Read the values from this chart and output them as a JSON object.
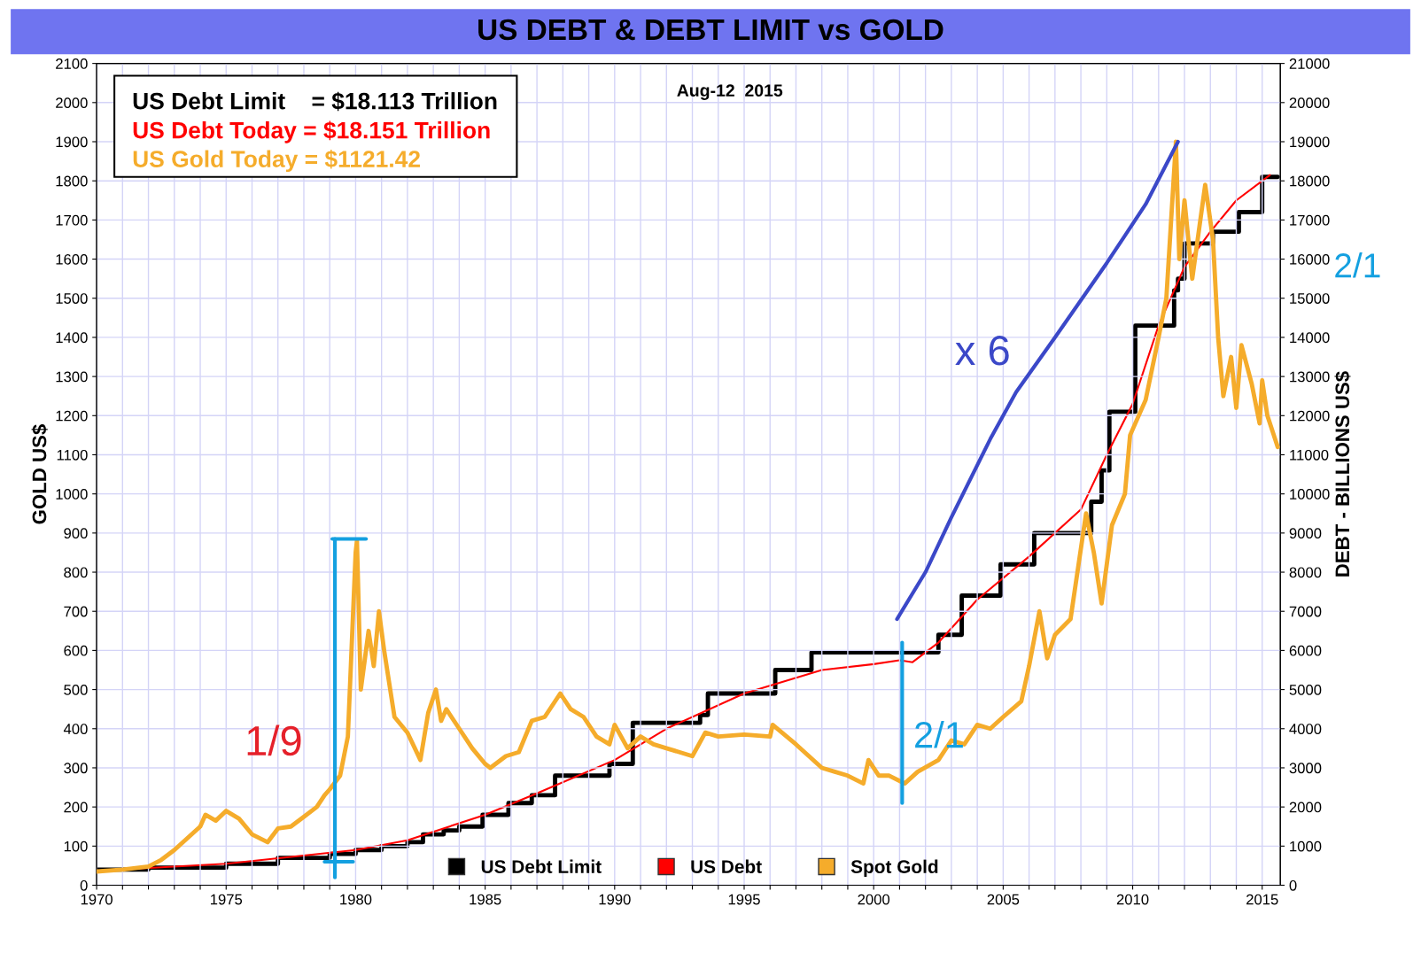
{
  "chart_data": {
    "type": "line",
    "title": "US DEBT & DEBT LIMIT vs GOLD",
    "ylabel": "GOLD US$",
    "y2label": "DEBT - BILLIONS US$",
    "annotations": [
      "US Debt Limit    = $18.113 Trillion",
      "US Debt Today = $18.151 Trillion",
      "US Gold Today = $1121.42",
      "Aug-12  2015",
      "1/9",
      "x 6",
      "2/1",
      "2/1"
    ],
    "xlim": [
      1970,
      2015.7
    ],
    "xticks": [
      1970,
      {
        "value": 1971,
        "label": null
      },
      {
        "value": 1972,
        "label": null
      },
      {
        "value": 1973,
        "label": null
      },
      {
        "value": 1974,
        "label": null
      },
      1975,
      {
        "value": 1976,
        "label": null
      },
      {
        "value": 1977,
        "label": null
      },
      {
        "value": 1978,
        "label": null
      },
      {
        "value": 1979,
        "label": null
      },
      1980,
      {
        "value": 1981,
        "label": null
      },
      {
        "value": 1982,
        "label": null
      },
      {
        "value": 1983,
        "label": null
      },
      {
        "value": 1984,
        "label": null
      },
      1985,
      {
        "value": 1986,
        "label": null
      },
      {
        "value": 1987,
        "label": null
      },
      {
        "value": 1988,
        "label": null
      },
      {
        "value": 1989,
        "label": null
      },
      1990,
      {
        "value": 1991,
        "label": null
      },
      {
        "value": 1992,
        "label": null
      },
      {
        "value": 1993,
        "label": null
      },
      {
        "value": 1994,
        "label": null
      },
      1995,
      {
        "value": 1996,
        "label": null
      },
      {
        "value": 1997,
        "label": null
      },
      {
        "value": 1998,
        "label": null
      },
      {
        "value": 1999,
        "label": null
      },
      2000,
      {
        "value": 2001,
        "label": null
      },
      {
        "value": 2002,
        "label": null
      },
      {
        "value": 2003,
        "label": null
      },
      {
        "value": 2004,
        "label": null
      },
      2005,
      {
        "value": 2006,
        "label": null
      },
      {
        "value": 2007,
        "label": null
      },
      {
        "value": 2008,
        "label": null
      },
      {
        "value": 2009,
        "label": null
      },
      2010,
      {
        "value": 2011,
        "label": null
      },
      {
        "value": 2012,
        "label": null
      },
      {
        "value": 2013,
        "label": null
      },
      {
        "value": 2014,
        "label": null
      },
      2015
    ],
    "ylim": [
      0,
      2100
    ],
    "yticks": [
      0,
      100,
      200,
      300,
      400,
      500,
      600,
      700,
      800,
      900,
      1000,
      1100,
      1200,
      1300,
      1400,
      1500,
      1600,
      1700,
      1800,
      1900,
      2000,
      2100
    ],
    "y2lim": [
      0,
      21000
    ],
    "y2ticks": [
      0,
      1000,
      2000,
      3000,
      4000,
      5000,
      6000,
      7000,
      8000,
      9000,
      10000,
      11000,
      12000,
      13000,
      14000,
      15000,
      16000,
      17000,
      18000,
      19000,
      20000,
      21000
    ],
    "grid": true,
    "legend": "bottom",
    "marker": "none",
    "line_style": "solid",
    "series": [
      {
        "name": "US Debt Limit",
        "type": "step",
        "axis": "y2",
        "color": "#000000",
        "x": [
          1970,
          1972,
          1975,
          1977,
          1979,
          1980,
          1981,
          1982,
          1982.6,
          1983.4,
          1984,
          1984.9,
          1985.9,
          1986.8,
          1987.7,
          1989.8,
          1990.7,
          1993.3,
          1993.6,
          1996.2,
          1997.6,
          2002.5,
          2003.4,
          2004.9,
          2006.2,
          2008.4,
          2008.8,
          2009.1,
          2010.1,
          2011.6,
          2011.75,
          2012.0,
          2013.1,
          2014.1,
          2015.0,
          2015.6
        ],
        "values": [
          400,
          450,
          550,
          700,
          800,
          900,
          1000,
          1100,
          1300,
          1400,
          1500,
          1800,
          2100,
          2300,
          2800,
          3100,
          4150,
          4350,
          4900,
          5500,
          5950,
          6400,
          7400,
          8200,
          9000,
          9800,
          10600,
          12100,
          14300,
          15200,
          15500,
          16400,
          16700,
          17200,
          18100,
          18100
        ]
      },
      {
        "name": "US Debt",
        "axis": "y2",
        "color": "#ff0000",
        "x": [
          1970,
          1975,
          1980,
          1982,
          1985,
          1987,
          1990,
          1992,
          1995,
          1998,
          2000,
          2001,
          2001.5,
          2002.5,
          2004,
          2006,
          2008,
          2009,
          2010,
          2011,
          2012,
          2013,
          2014,
          2015.3
        ],
        "values": [
          370,
          550,
          900,
          1150,
          1800,
          2350,
          3200,
          4000,
          4900,
          5500,
          5650,
          5750,
          5700,
          6200,
          7300,
          8400,
          9600,
          11000,
          12300,
          14300,
          15800,
          16700,
          17500,
          18150
        ]
      },
      {
        "name": "Spot Gold",
        "color": "#f5ac2b",
        "x": [
          1970,
          1971,
          1972,
          1972.5,
          1973,
          1973.5,
          1974,
          1974.2,
          1974.6,
          1975,
          1975.5,
          1976,
          1976.6,
          1977,
          1977.5,
          1978,
          1978.5,
          1978.8,
          1979,
          1979.4,
          1979.7,
          1980.0,
          1980.05,
          1980.2,
          1980.5,
          1980.7,
          1980.9,
          1981.1,
          1981.5,
          1982.0,
          1982.5,
          1982.8,
          1983.1,
          1983.3,
          1983.5,
          1984,
          1984.5,
          1985,
          1985.2,
          1985.8,
          1986.3,
          1986.8,
          1987.3,
          1987.9,
          1988.3,
          1988.8,
          1989.3,
          1989.8,
          1990,
          1990.5,
          1991,
          1991.5,
          1992,
          1992.5,
          1993,
          1993.5,
          1994,
          1995,
          1996,
          1996.1,
          1997,
          1997.5,
          1998,
          1998.5,
          1999,
          1999.6,
          1999.8,
          2000.2,
          2000.6,
          2001.2,
          2001.7,
          2002.5,
          2003,
          2003.5,
          2004,
          2004.5,
          2005,
          2005.7,
          2006.0,
          2006.4,
          2006.7,
          2007,
          2007.6,
          2008.2,
          2008.5,
          2008.8,
          2009.2,
          2009.7,
          2009.9,
          2010.5,
          2011,
          2011.3,
          2011.67,
          2011.8,
          2012.0,
          2012.3,
          2012.8,
          2013.1,
          2013.3,
          2013.5,
          2013.8,
          2014.0,
          2014.2,
          2014.6,
          2014.9,
          2015.0,
          2015.2,
          2015.6
        ],
        "values": [
          35,
          40,
          48,
          65,
          90,
          120,
          150,
          180,
          165,
          190,
          170,
          130,
          110,
          145,
          150,
          175,
          200,
          230,
          245,
          280,
          380,
          850,
          880,
          500,
          650,
          560,
          700,
          600,
          430,
          390,
          320,
          440,
          500,
          420,
          450,
          400,
          350,
          310,
          300,
          330,
          340,
          420,
          430,
          490,
          450,
          430,
          380,
          360,
          410,
          350,
          380,
          360,
          350,
          340,
          330,
          390,
          380,
          385,
          380,
          410,
          360,
          330,
          300,
          290,
          280,
          260,
          320,
          280,
          280,
          260,
          290,
          320,
          370,
          360,
          410,
          400,
          430,
          470,
          560,
          700,
          580,
          640,
          680,
          950,
          850,
          720,
          920,
          1000,
          1150,
          1240,
          1400,
          1500,
          1900,
          1600,
          1750,
          1550,
          1790,
          1650,
          1400,
          1250,
          1350,
          1220,
          1380,
          1280,
          1180,
          1290,
          1200,
          1120
        ]
      },
      {
        "type": "line",
        "color": "#3b48c8",
        "x": [
          2000.9,
          2002,
          2003,
          2004.5,
          2005.5,
          2007,
          2009,
          2010.5,
          2011.75
        ],
        "values": [
          680,
          800,
          940,
          1140,
          1260,
          1400,
          1590,
          1740,
          1900
        ]
      },
      {
        "type": "line",
        "color": "#14a0e0",
        "x": [
          1979.2,
          1979.2
        ],
        "values": [
          20,
          885
        ]
      },
      {
        "type": "line",
        "color": "#14a0e0",
        "x": [
          1979.1,
          1980.4
        ],
        "values": [
          885,
          885
        ]
      },
      {
        "type": "line",
        "color": "#14a0e0",
        "x": [
          1978.8,
          1979.9
        ],
        "values": [
          60,
          60
        ]
      },
      {
        "type": "line",
        "color": "#14a0e0",
        "x": [
          2001.1,
          2001.1
        ],
        "values": [
          210,
          620
        ]
      }
    ]
  }
}
